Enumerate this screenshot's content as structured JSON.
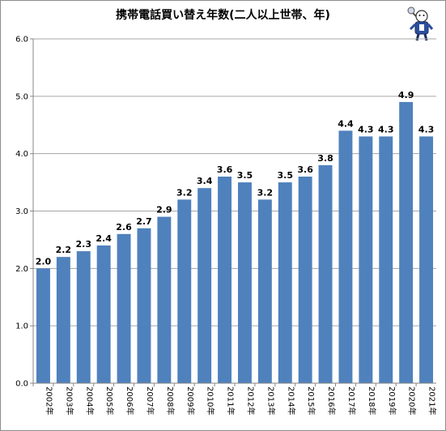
{
  "chart_data": {
    "type": "bar",
    "title": "携帯電話買い替え年数(二人以上世帯、年)",
    "categories": [
      "2002年",
      "2003年",
      "2004年",
      "2005年",
      "2006年",
      "2007年",
      "2008年",
      "2009年",
      "2010年",
      "2011年",
      "2012年",
      "2013年",
      "2014年",
      "2015年",
      "2016年",
      "2017年",
      "2018年",
      "2019年",
      "2020年",
      "2021年"
    ],
    "values": [
      2.0,
      2.2,
      2.3,
      2.4,
      2.6,
      2.7,
      2.9,
      3.2,
      3.4,
      3.6,
      3.5,
      3.2,
      3.5,
      3.6,
      3.8,
      4.4,
      4.3,
      4.3,
      4.9,
      4.3
    ],
    "data_labels": [
      "2.0",
      "2.2",
      "2.3",
      "2.4",
      "2.6",
      "2.7",
      "2.9",
      "3.2",
      "3.4",
      "3.6",
      "3.5",
      "3.2",
      "3.5",
      "3.6",
      "3.8",
      "4.4",
      "4.3",
      "4.3",
      "4.9",
      "4.3"
    ],
    "yticks": [
      "0.0",
      "1.0",
      "2.0",
      "3.0",
      "4.0",
      "5.0",
      "6.0"
    ],
    "ylim": [
      0,
      6
    ],
    "grid": true,
    "colors": {
      "bar": "#4f81bd",
      "grid": "#a6a6a6",
      "axis": "#868686"
    }
  },
  "mascot_icon": "mascot-icon"
}
